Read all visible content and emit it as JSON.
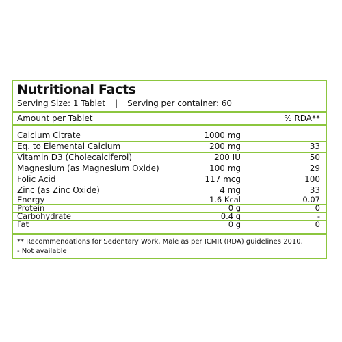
{
  "panel": {
    "title": "Nutritional Facts",
    "serving_size": "Serving Size: 1 Tablet",
    "separator": "|",
    "serving_per_container": "Serving per container: 60",
    "amount_header": "Amount per Tablet",
    "rda_header": "% RDA**",
    "accent_color": "#8cc63f",
    "rows": [
      {
        "name": "Calcium Citrate",
        "amount": "1000 mg",
        "rda": ""
      },
      {
        "name": "Eq. to Elemental Calcium",
        "amount": "200 mg",
        "rda": "33"
      },
      {
        "name": "Vitamin D3 (Cholecalciferol)",
        "amount": "200 IU",
        "rda": "50"
      },
      {
        "name": "Magnesium (as Magnesium Oxide)",
        "amount": "100 mg",
        "rda": "29"
      },
      {
        "name": "Folic Acid",
        "amount": "117 mcg",
        "rda": "100"
      },
      {
        "name": "Zinc (as Zinc Oxide)",
        "amount": "4 mg",
        "rda": "33"
      },
      {
        "name": "Energy",
        "amount": "1.6 Kcal",
        "rda": "0.07"
      },
      {
        "name": "Protein",
        "amount": "0 g",
        "rda": "0"
      },
      {
        "name": "Carbohydrate",
        "amount": "0.4 g",
        "rda": "-"
      },
      {
        "name": "Fat",
        "amount": "0 g",
        "rda": "0"
      }
    ],
    "footnote_1": "** Recommendations for Sedentary Work, Male as per ICMR (RDA) guidelines 2010.",
    "footnote_2": "- Not available"
  }
}
